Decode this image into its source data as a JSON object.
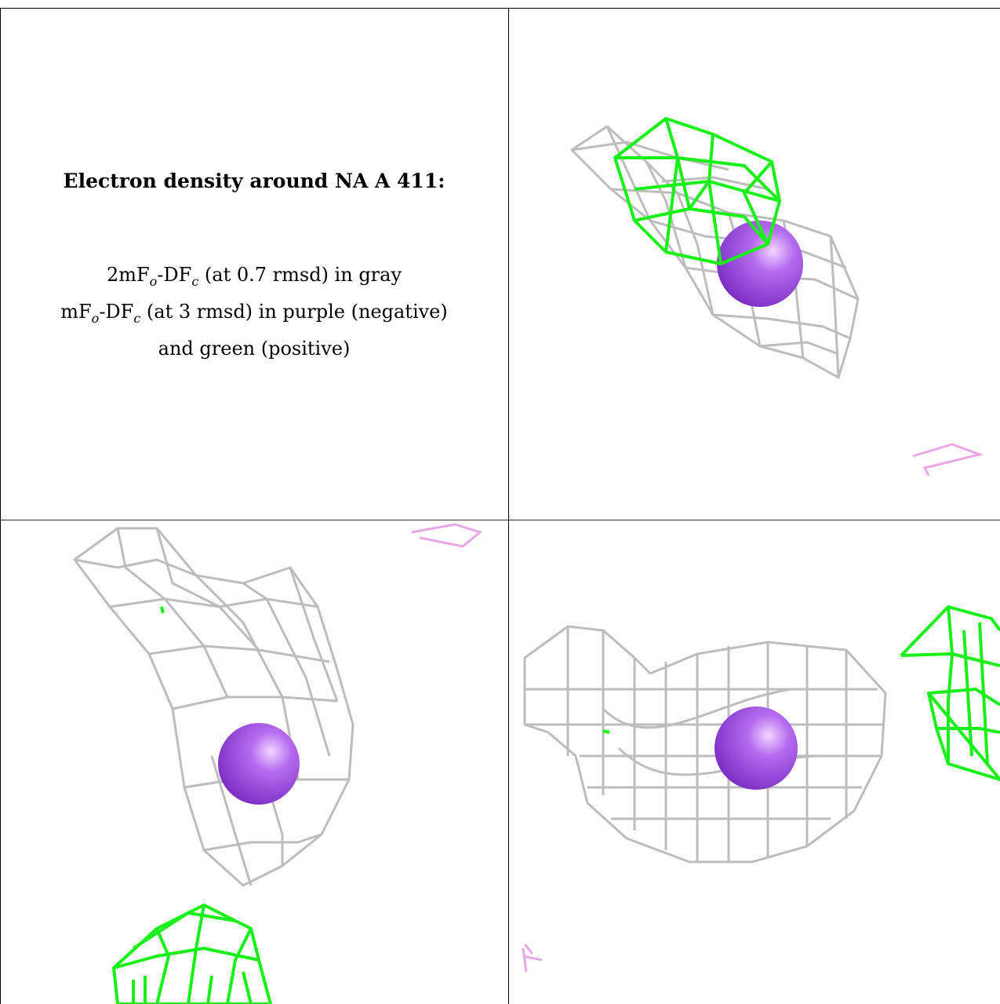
{
  "title": "Electron density around NA A 411:",
  "legend": {
    "line1_a": "2mF",
    "line1_sub1": "o",
    "line1_b": "-DF",
    "line1_sub2": "c",
    "line1_c": " (at 0.7 rmsd) in gray",
    "line2_a": "mF",
    "line2_sub1": "o",
    "line2_b": "-DF",
    "line2_sub2": "c",
    "line2_c": " (at 3 rmsd) in purple (negative)",
    "line3": "and green (positive)"
  },
  "colors": {
    "gray_mesh": "#bdbdbd",
    "green_mesh": "#19f019",
    "purple_mesh": "#e8a8e8",
    "sphere": "#a855e8"
  }
}
